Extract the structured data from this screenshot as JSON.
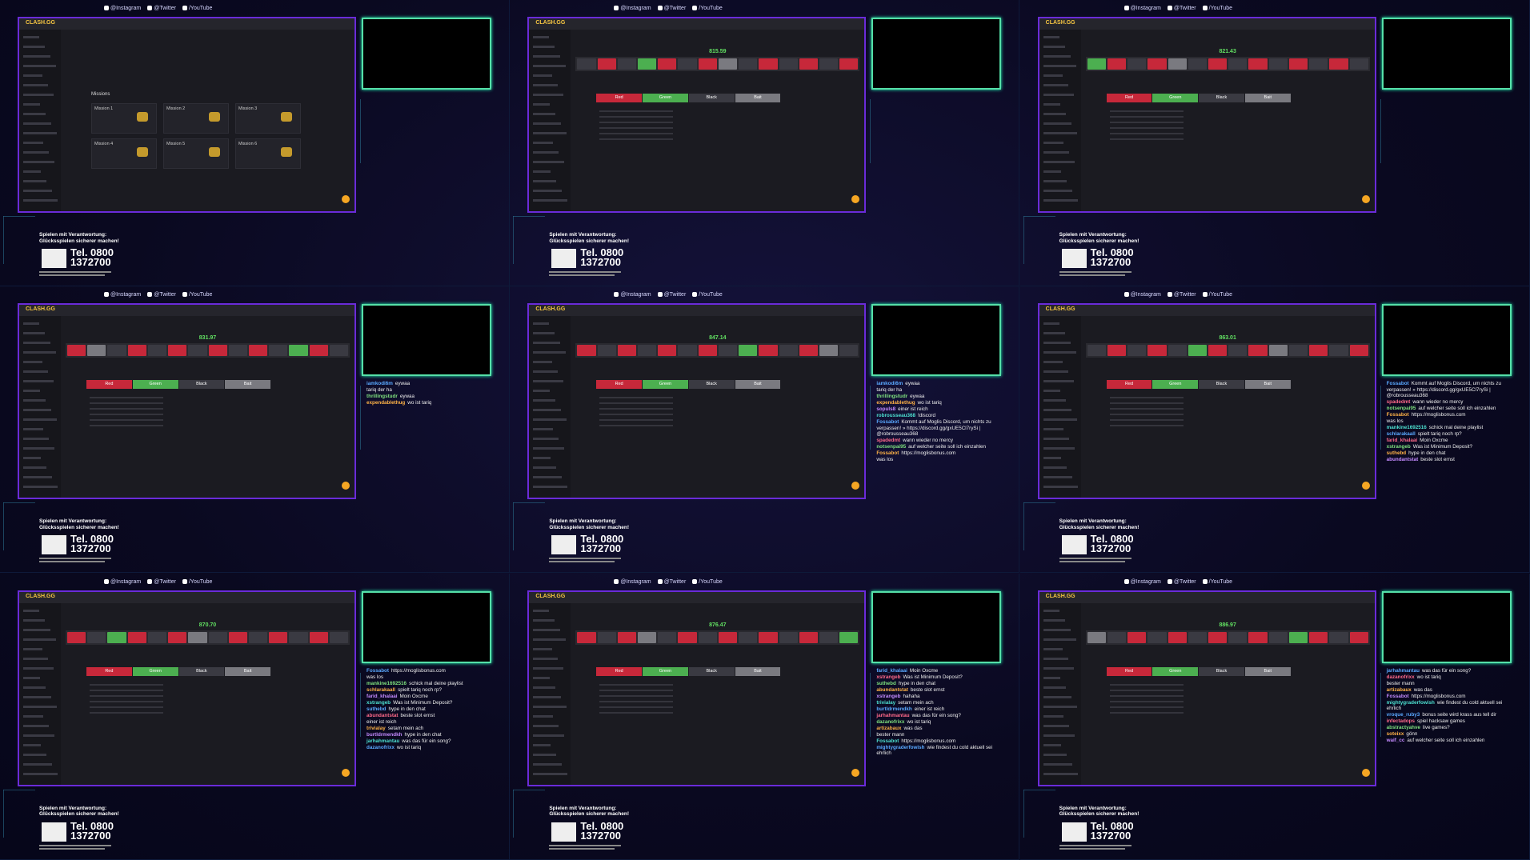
{
  "social": [
    "@Instagram",
    "@Twitter",
    "/YouTube"
  ],
  "brand": "CLASH.GG",
  "bet_options": [
    "Red",
    "Green",
    "Black",
    "Bait"
  ],
  "missions": {
    "title": "Missions",
    "items": [
      "Mission 1",
      "Mission 2",
      "Mission 3",
      "Mission 4",
      "Mission 5",
      "Mission 6"
    ]
  },
  "notice": {
    "line1": "Spielen mit Verantwortung:",
    "line2": "Glücksspielen sicherer machen!",
    "tel1": "Tel. 0800",
    "tel2": "1372700"
  },
  "tiles": [
    {
      "kind": "missions",
      "chat": []
    },
    {
      "kind": "roulette",
      "amount": "815.59",
      "chat": []
    },
    {
      "kind": "roulette",
      "amount": "821.43",
      "chat": []
    },
    {
      "kind": "roulette",
      "amount": "831.97",
      "chat": [
        {
          "user": "iamkodi6m",
          "text": "eywaa"
        },
        {
          "user": "",
          "text": "tariq der ha"
        },
        {
          "user": "thrillingstudr",
          "text": "eywaa"
        },
        {
          "user": "expendablethug",
          "text": "wo ist tariq"
        }
      ]
    },
    {
      "kind": "roulette",
      "amount": "847.14",
      "chat": [
        {
          "user": "iamkodi6m",
          "text": "eywaa"
        },
        {
          "user": "",
          "text": "tariq der ha"
        },
        {
          "user": "thrillingstudr",
          "text": "eywaa"
        },
        {
          "user": "expendablethug",
          "text": "wo ist tariq"
        },
        {
          "user": "sopuls8",
          "text": "einer ist reich"
        },
        {
          "user": "robrousseau368",
          "text": "!discord"
        },
        {
          "user": "Fossabot",
          "text": "Kommt auf Moglis Discord, um nichts zu verpassen! » https://discord.gg/gxUE5Cl7rySi | @robrousseau368"
        },
        {
          "user": "spadedmt",
          "text": "wann wieder no mercy"
        },
        {
          "user": "notsenpai95",
          "text": "auf welcher seite soll ich einzahlen"
        },
        {
          "user": "Fossabot",
          "text": "https://moglisbonus.com"
        },
        {
          "user": "",
          "text": "was los"
        }
      ]
    },
    {
      "kind": "roulette",
      "amount": "863.01",
      "chat": [
        {
          "user": "Fossabot",
          "text": "Kommt auf Moglis Discord, um nichts zu verpassen! » https://discord.gg/gxUE5Cl7rySi | @robrousseau368"
        },
        {
          "user": "spadedmt",
          "text": "wann wieder no mercy"
        },
        {
          "user": "notsenpai95",
          "text": "auf welcher seite soll ich einzahlen"
        },
        {
          "user": "Fossabot",
          "text": "https://moglisbonus.com"
        },
        {
          "user": "",
          "text": "was los"
        },
        {
          "user": "mankine1692516",
          "text": "schick mal deine playlist"
        },
        {
          "user": "schlarakaall",
          "text": "spielt tariq noch rp?"
        },
        {
          "user": "farid_khalaai",
          "text": "Moin Oxcme"
        },
        {
          "user": "xstrangeb",
          "text": "Was ist Minimum Deposit?"
        },
        {
          "user": "suthebd",
          "text": "hype in den chat"
        },
        {
          "user": "abundantstat",
          "text": "beste slot ernst"
        }
      ]
    },
    {
      "kind": "roulette",
      "amount": "870.70",
      "chat": [
        {
          "user": "Fossabot",
          "text": "https://moglisbonus.com"
        },
        {
          "user": "",
          "text": "was los"
        },
        {
          "user": "mankine1692516",
          "text": "schick mal deine playlist"
        },
        {
          "user": "schlarakaall",
          "text": "spielt tariq noch rp?"
        },
        {
          "user": "farid_khalaai",
          "text": "Moin Oxcme"
        },
        {
          "user": "xstrangeb",
          "text": "Was ist Minimum Deposit?"
        },
        {
          "user": "suthebd",
          "text": "hype in den chat"
        },
        {
          "user": "abundantstat",
          "text": "beste slot ernst"
        },
        {
          "user": "",
          "text": "einer ist reich"
        },
        {
          "user": "trivialay",
          "text": "setam mein ach"
        },
        {
          "user": "burtldrmendkh",
          "text": "hype in den chat"
        },
        {
          "user": "jarhahmantau",
          "text": "was das für ein song?"
        },
        {
          "user": "dazanofrixx",
          "text": "wo ist tariq"
        }
      ]
    },
    {
      "kind": "roulette",
      "amount": "876.47",
      "chat": [
        {
          "user": "farid_khalaai",
          "text": "Moin Oxcme"
        },
        {
          "user": "xstrangeb",
          "text": "Was ist Minimum Deposit?"
        },
        {
          "user": "suthebd",
          "text": "hype in den chat"
        },
        {
          "user": "abundantstat",
          "text": "beste slot ernst"
        },
        {
          "user": "xstrangeb",
          "text": "hahaha"
        },
        {
          "user": "trivialay",
          "text": "setam mein ach"
        },
        {
          "user": "burtldrmendkh",
          "text": "einer ist reich"
        },
        {
          "user": "jarhahmantau",
          "text": "was das für ein song?"
        },
        {
          "user": "dazanofrixx",
          "text": "wo ist tariq"
        },
        {
          "user": "artizabaux",
          "text": "was das"
        },
        {
          "user": "",
          "text": "bester mann"
        },
        {
          "user": "Fossabot",
          "text": "https://moglisbonus.com"
        },
        {
          "user": "mightygraderfowish",
          "text": "wie findest du cold aktuell sei ehrlich"
        }
      ]
    },
    {
      "kind": "roulette",
      "amount": "886.97",
      "chat": [
        {
          "user": "jarhahmantau",
          "text": "was das für ein song?"
        },
        {
          "user": "dazanofrixx",
          "text": "wo ist tariq"
        },
        {
          "user": "",
          "text": "bester mann"
        },
        {
          "user": "artizabaux",
          "text": "was das"
        },
        {
          "user": "Fossabot",
          "text": "https://moglisbonus.com"
        },
        {
          "user": "mightygraderfowish",
          "text": "wie findest du cold aktuell sei ehrlich"
        },
        {
          "user": "vroque_ruby3",
          "text": "bonus seite wird krass aus tell dir"
        },
        {
          "user": "infectadops",
          "text": "spiel hacksaw games"
        },
        {
          "user": "abstractyahve",
          "text": "live games?"
        },
        {
          "user": "soteixx",
          "text": "gönn"
        },
        {
          "user": "waif_cc",
          "text": "auf welcher seite soll ich einzahlen"
        }
      ]
    }
  ]
}
